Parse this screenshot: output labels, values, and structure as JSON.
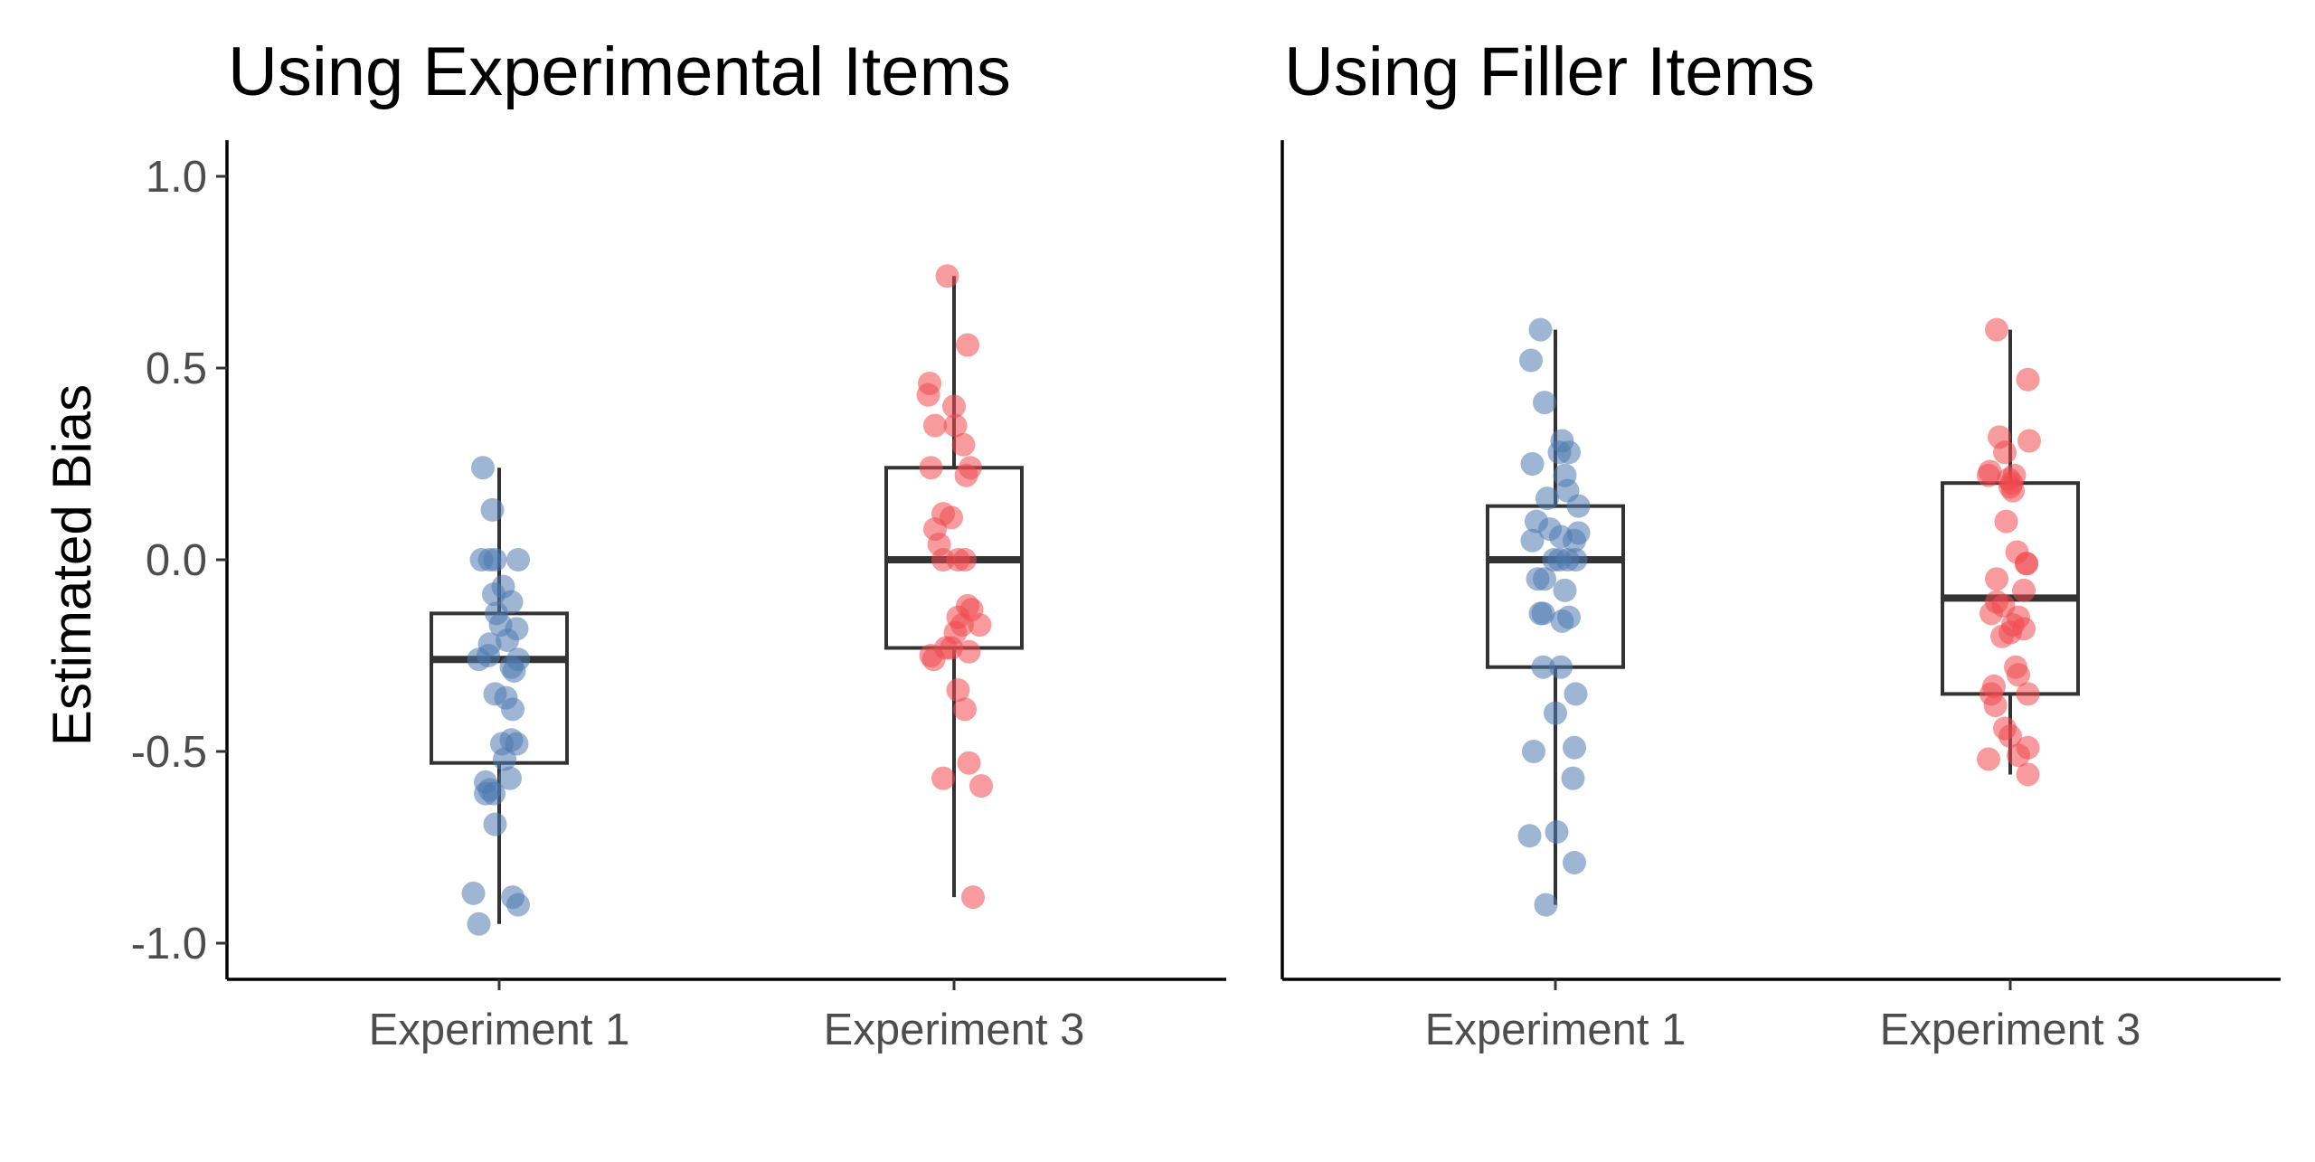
{
  "chart_data": {
    "type": "boxplot",
    "y_axis": {
      "label": "Estimated Bias",
      "lim": [
        -1.1,
        1.1
      ],
      "ticks": [
        1.0,
        0.5,
        0.0,
        -0.5,
        -1.0
      ],
      "tick_labels": [
        "1.0",
        "0.5",
        "0.0",
        "-0.5",
        "-1.0"
      ]
    },
    "categories": [
      "Experiment 1",
      "Experiment 3"
    ],
    "colors": {
      "Experiment 1": "#4e79b0",
      "Experiment 3": "#f0484f"
    },
    "grid": false,
    "legend": "none",
    "panels": [
      {
        "title": "Using Experimental Items",
        "series": [
          {
            "category": "Experiment 1",
            "box": {
              "q1": -0.53,
              "median": -0.26,
              "q3": -0.14,
              "whisker_low": -0.95,
              "whisker_high": 0.24
            },
            "points": [
              [
                -0.12,
                0.24
              ],
              [
                -0.05,
                0.13
              ],
              [
                -0.13,
                0.0
              ],
              [
                -0.07,
                0.0
              ],
              [
                -0.03,
                0.0
              ],
              [
                0.14,
                0.0
              ],
              [
                0.03,
                -0.07
              ],
              [
                -0.04,
                -0.09
              ],
              [
                0.09,
                -0.11
              ],
              [
                -0.02,
                -0.14
              ],
              [
                0.01,
                -0.17
              ],
              [
                0.13,
                -0.18
              ],
              [
                0.06,
                -0.21
              ],
              [
                -0.07,
                -0.22
              ],
              [
                -0.15,
                -0.26
              ],
              [
                -0.08,
                -0.25
              ],
              [
                0.14,
                -0.26
              ],
              [
                0.11,
                -0.29
              ],
              [
                0.09,
                -0.28
              ],
              [
                -0.03,
                -0.35
              ],
              [
                0.05,
                -0.36
              ],
              [
                0.1,
                -0.39
              ],
              [
                0.02,
                -0.48
              ],
              [
                0.09,
                -0.47
              ],
              [
                0.13,
                -0.48
              ],
              [
                0.04,
                -0.52
              ],
              [
                0.08,
                -0.57
              ],
              [
                -0.1,
                -0.58
              ],
              [
                -0.07,
                -0.6
              ],
              [
                -0.1,
                -0.61
              ],
              [
                -0.04,
                -0.61
              ],
              [
                -0.03,
                -0.69
              ],
              [
                -0.19,
                -0.87
              ],
              [
                0.1,
                -0.88
              ],
              [
                0.14,
                -0.9
              ],
              [
                -0.15,
                -0.95
              ]
            ]
          },
          {
            "category": "Experiment 3",
            "box": {
              "q1": -0.23,
              "median": 0.0,
              "q3": 0.24,
              "whisker_low": -0.88,
              "whisker_high": 0.74
            },
            "points": [
              [
                -0.05,
                0.74
              ],
              [
                0.1,
                0.56
              ],
              [
                -0.18,
                0.46
              ],
              [
                -0.19,
                0.43
              ],
              [
                0.0,
                0.4
              ],
              [
                0.01,
                0.35
              ],
              [
                -0.14,
                0.35
              ],
              [
                0.07,
                0.3
              ],
              [
                -0.17,
                0.24
              ],
              [
                0.12,
                0.24
              ],
              [
                0.09,
                0.22
              ],
              [
                -0.14,
                0.08
              ],
              [
                -0.08,
                0.12
              ],
              [
                -0.02,
                0.11
              ],
              [
                -0.11,
                0.04
              ],
              [
                -0.08,
                0.0
              ],
              [
                0.03,
                0.0
              ],
              [
                0.08,
                0.0
              ],
              [
                0.1,
                -0.12
              ],
              [
                0.13,
                -0.13
              ],
              [
                0.03,
                -0.15
              ],
              [
                0.19,
                -0.17
              ],
              [
                0.06,
                -0.17
              ],
              [
                0.01,
                -0.19
              ],
              [
                -0.02,
                -0.23
              ],
              [
                -0.06,
                -0.23
              ],
              [
                0.11,
                -0.24
              ],
              [
                -0.17,
                -0.25
              ],
              [
                -0.15,
                -0.26
              ],
              [
                0.03,
                -0.34
              ],
              [
                0.08,
                -0.39
              ],
              [
                0.11,
                -0.53
              ],
              [
                -0.08,
                -0.57
              ],
              [
                0.2,
                -0.59
              ],
              [
                0.14,
                -0.88
              ]
            ]
          }
        ]
      },
      {
        "title": "Using Filler Items",
        "series": [
          {
            "category": "Experiment 1",
            "box": {
              "q1": -0.28,
              "median": 0.0,
              "q3": 0.14,
              "whisker_low": -0.9,
              "whisker_high": 0.6
            },
            "points": [
              [
                -0.11,
                0.6
              ],
              [
                -0.18,
                0.52
              ],
              [
                -0.08,
                0.41
              ],
              [
                -0.17,
                0.25
              ],
              [
                0.05,
                0.31
              ],
              [
                0.03,
                0.28
              ],
              [
                0.1,
                0.28
              ],
              [
                0.07,
                0.22
              ],
              [
                0.09,
                0.18
              ],
              [
                -0.06,
                0.16
              ],
              [
                0.17,
                0.14
              ],
              [
                -0.14,
                0.1
              ],
              [
                -0.04,
                0.08
              ],
              [
                0.04,
                0.06
              ],
              [
                0.14,
                0.05
              ],
              [
                -0.17,
                0.05
              ],
              [
                0.17,
                0.07
              ],
              [
                -0.01,
                0.0
              ],
              [
                0.09,
                0.0
              ],
              [
                0.03,
                0.0
              ],
              [
                0.15,
                0.0
              ],
              [
                -0.08,
                -0.05
              ],
              [
                -0.13,
                -0.05
              ],
              [
                0.07,
                -0.08
              ],
              [
                -0.09,
                -0.14
              ],
              [
                -0.11,
                -0.14
              ],
              [
                0.05,
                -0.16
              ],
              [
                0.1,
                -0.15
              ],
              [
                -0.09,
                -0.28
              ],
              [
                0.04,
                -0.28
              ],
              [
                0.15,
                -0.35
              ],
              [
                0.0,
                -0.4
              ],
              [
                0.14,
                -0.49
              ],
              [
                -0.16,
                -0.5
              ],
              [
                0.13,
                -0.57
              ],
              [
                0.01,
                -0.71
              ],
              [
                -0.19,
                -0.72
              ],
              [
                0.14,
                -0.79
              ],
              [
                -0.07,
                -0.9
              ]
            ]
          },
          {
            "category": "Experiment 3",
            "box": {
              "q1": -0.35,
              "median": -0.1,
              "q3": 0.2,
              "whisker_low": -0.56,
              "whisker_high": 0.6
            },
            "points": [
              [
                -0.1,
                0.6
              ],
              [
                0.13,
                0.47
              ],
              [
                -0.08,
                0.32
              ],
              [
                -0.04,
                0.28
              ],
              [
                0.14,
                0.31
              ],
              [
                -0.15,
                0.23
              ],
              [
                -0.16,
                0.22
              ],
              [
                0.03,
                0.22
              ],
              [
                0.01,
                0.2
              ],
              [
                -0.01,
                0.21
              ],
              [
                0.0,
                0.19
              ],
              [
                0.02,
                0.18
              ],
              [
                -0.03,
                0.1
              ],
              [
                0.05,
                0.02
              ],
              [
                0.12,
                -0.01
              ],
              [
                -0.1,
                -0.05
              ],
              [
                0.12,
                -0.01
              ],
              [
                -0.1,
                -0.11
              ],
              [
                -0.05,
                -0.12
              ],
              [
                0.1,
                -0.08
              ],
              [
                -0.14,
                -0.14
              ],
              [
                0.06,
                -0.15
              ],
              [
                0.02,
                -0.17
              ],
              [
                0.1,
                -0.18
              ],
              [
                0.0,
                -0.19
              ],
              [
                -0.06,
                -0.2
              ],
              [
                0.04,
                -0.28
              ],
              [
                0.06,
                -0.3
              ],
              [
                -0.12,
                -0.33
              ],
              [
                -0.14,
                -0.35
              ],
              [
                0.13,
                -0.35
              ],
              [
                -0.11,
                -0.38
              ],
              [
                -0.04,
                -0.44
              ],
              [
                0.0,
                -0.46
              ],
              [
                0.13,
                -0.49
              ],
              [
                0.06,
                -0.51
              ],
              [
                -0.16,
                -0.52
              ],
              [
                0.13,
                -0.56
              ]
            ]
          }
        ]
      }
    ]
  }
}
